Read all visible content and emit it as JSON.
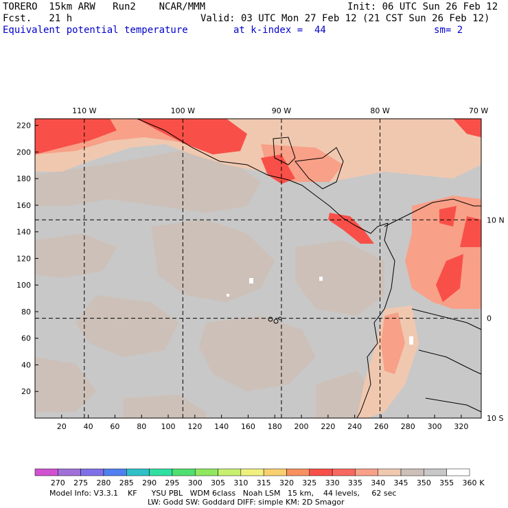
{
  "header": {
    "model": "TORERO  15km ARW   Run2    NCAR/MMM",
    "init": "Init: 06 UTC Sun 26 Feb 12",
    "fcst": "Fcst.   21 h",
    "valid": "Valid: 03 UTC Mon 27 Feb 12 (21 CST Sun 26 Feb 12)",
    "field": "Equivalent potential temperature",
    "level": "at k-index =  44",
    "smooth": "sm= 2"
  },
  "chart_data": {
    "type": "heatmap",
    "title": "Equivalent potential temperature",
    "x_ticks": [
      20,
      40,
      60,
      80,
      100,
      120,
      140,
      160,
      180,
      200,
      220,
      240,
      260,
      280,
      300,
      320
    ],
    "y_ticks": [
      20,
      40,
      60,
      80,
      100,
      120,
      140,
      160,
      180,
      200,
      220
    ],
    "xlim": [
      0,
      335
    ],
    "ylim": [
      0,
      225
    ],
    "lon_labels": [
      {
        "label": "110 W",
        "x": 37
      },
      {
        "label": "100 W",
        "x": 111
      },
      {
        "label": "90 W",
        "x": 185
      },
      {
        "label": "80 W",
        "x": 259
      },
      {
        "label": "70 W",
        "x": 333
      }
    ],
    "lat_labels": [
      {
        "label": "10 N",
        "y": 149
      },
      {
        "label": "0",
        "y": 75
      },
      {
        "label": "10 S",
        "y": 0
      }
    ],
    "colorbar": {
      "levels": [
        "270",
        "275",
        "280",
        "285",
        "290",
        "295",
        "300",
        "305",
        "310",
        "315",
        "320",
        "325",
        "330",
        "335",
        "340",
        "345",
        "350",
        "355",
        "360"
      ],
      "colors": [
        "#d050d0",
        "#a070d8",
        "#8070e8",
        "#5080f0",
        "#30c0c8",
        "#30e0a0",
        "#50e070",
        "#90e860",
        "#c8f070",
        "#f0f080",
        "#f8d070",
        "#f89060",
        "#f85048",
        "#f86860",
        "#f8a088",
        "#f0c8b0",
        "#ccc0b8",
        "#c8c8c8",
        "#ffffff"
      ],
      "unit": "K"
    },
    "regions_legend": {
      "land_high": "#f85048",
      "land_warm": "#f8a088",
      "ocean_tan": "#ccc0b8",
      "ocean_grey": "#c8c8c8"
    }
  },
  "footer": {
    "line1": "Model Info: V3.3.1    KF      YSU PBL   WDM 6class   Noah LSM   15 km,    44 levels,     62 sec",
    "line2": "LW: Godd SW: Goddard DIFF: simple KM: 2D Smagor"
  }
}
